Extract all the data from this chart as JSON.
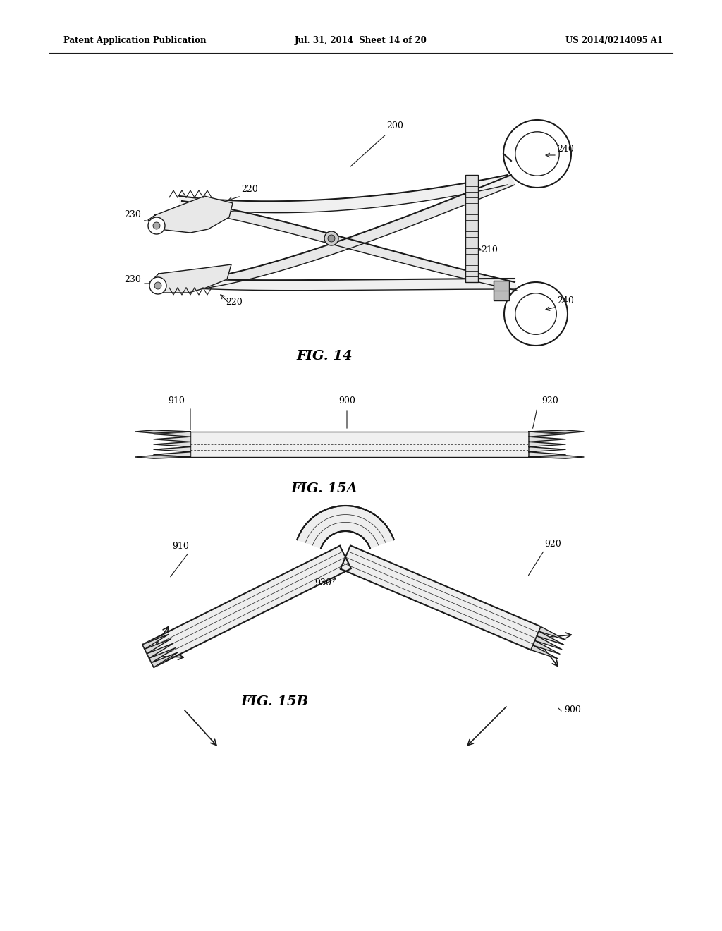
{
  "bg_color": "#ffffff",
  "line_color": "#1a1a1a",
  "header_left": "Patent Application Publication",
  "header_mid": "Jul. 31, 2014  Sheet 14 of 20",
  "header_right": "US 2014/0214095 A1"
}
